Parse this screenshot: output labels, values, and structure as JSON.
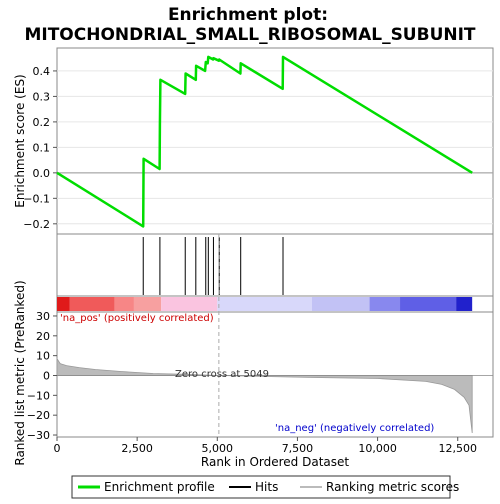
{
  "chart_data": {
    "type": "line",
    "title_line1": "Enrichment plot:",
    "title_line2": "MITOCHONDRIAL_SMALL_RIBOSOMAL_SUBUNIT",
    "es_panel": {
      "ylabel": "Enrichment score (ES)",
      "ylim": [
        -0.24,
        0.49
      ],
      "yticks": [
        -0.2,
        -0.1,
        0.0,
        0.1,
        0.2,
        0.3,
        0.4
      ],
      "ytick_labels": [
        "−0.2",
        "−0.1",
        "0.0",
        "0.1",
        "0.2",
        "0.3",
        "0.4"
      ],
      "series_name": "Enrichment profile",
      "color": "#00dd00",
      "x": [
        0,
        2690,
        2700,
        3200,
        3210,
        3225,
        4000,
        4010,
        4330,
        4340,
        4620,
        4640,
        4700,
        4720,
        4870,
        4880,
        5050,
        5060,
        5720,
        5730,
        7040,
        7050,
        12950
      ],
      "y": [
        0.0,
        -0.21,
        0.055,
        0.015,
        0.19,
        0.365,
        0.31,
        0.39,
        0.365,
        0.42,
        0.4,
        0.435,
        0.43,
        0.455,
        0.445,
        0.45,
        0.44,
        0.445,
        0.39,
        0.43,
        0.33,
        0.455,
        0.0
      ]
    },
    "hits": {
      "positions": [
        2690,
        3210,
        4000,
        4330,
        4640,
        4720,
        4880,
        5060,
        5730,
        7050
      ]
    },
    "rank_panel": {
      "ylabel": "Ranked list metric (PreRanked)",
      "xlabel": "Rank in Ordered Dataset",
      "ylim": [
        -31,
        32
      ],
      "yticks": [
        -30,
        -20,
        -10,
        0,
        10,
        20,
        30
      ],
      "ytick_labels": [
        "−30",
        "−20",
        "−10",
        "0",
        "10",
        "20",
        "30"
      ],
      "xlim": [
        0,
        13600
      ],
      "xticks": [
        0,
        2500,
        5000,
        7500,
        10000,
        12500
      ],
      "xtick_labels": [
        "0",
        "2,500",
        "5,000",
        "7,500",
        "10,000",
        "12,500"
      ],
      "x": [
        0,
        100,
        300,
        700,
        1200,
        2000,
        3000,
        4000,
        5049,
        6500,
        8000,
        10000,
        11500,
        12000,
        12400,
        12700,
        12850,
        12900,
        12950
      ],
      "y": [
        8.5,
        6,
        5,
        4,
        3,
        2,
        1,
        0.6,
        0,
        -0.5,
        -1,
        -1.5,
        -3,
        -4.5,
        -7,
        -11,
        -15,
        -22,
        -29
      ],
      "zero_cross_label": "Zero cross at 5049",
      "pos_label": "'na_pos' (positively correlated)",
      "neg_label": "'na_neg' (negatively correlated)"
    },
    "color_bar": {
      "segments": [
        {
          "start": 0,
          "end": 400,
          "color": "#e01a1a"
        },
        {
          "start": 400,
          "end": 1800,
          "color": "#f05a5a"
        },
        {
          "start": 1800,
          "end": 2400,
          "color": "#f78686"
        },
        {
          "start": 2400,
          "end": 3250,
          "color": "#f7a0a0"
        },
        {
          "start": 3250,
          "end": 5000,
          "color": "#fac4e0"
        },
        {
          "start": 5000,
          "end": 7950,
          "color": "#d8d8fa"
        },
        {
          "start": 7950,
          "end": 9750,
          "color": "#c2c2f5"
        },
        {
          "start": 9750,
          "end": 10700,
          "color": "#8888ee"
        },
        {
          "start": 10700,
          "end": 12450,
          "color": "#5f5fe6"
        },
        {
          "start": 12450,
          "end": 12950,
          "color": "#2121cc"
        }
      ]
    },
    "legend": {
      "items": [
        "Enrichment profile",
        "Hits",
        "Ranking metric scores"
      ]
    }
  }
}
